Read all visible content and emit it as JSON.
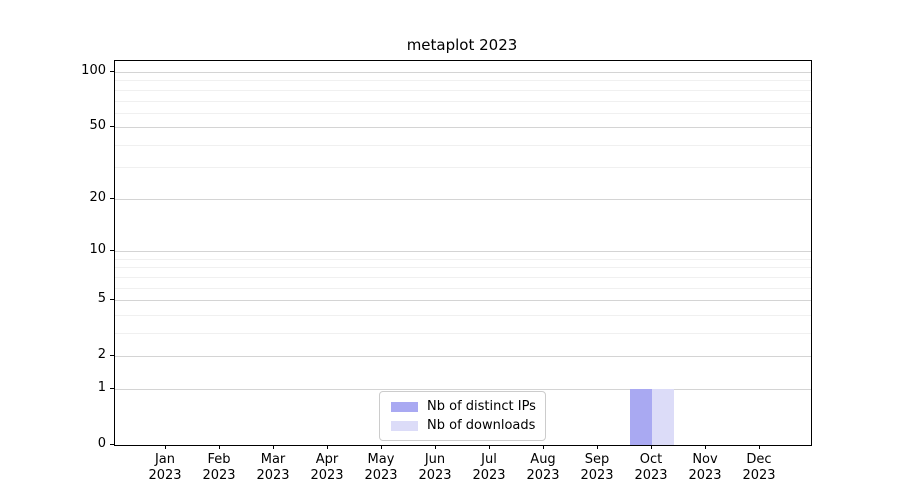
{
  "chart_data": {
    "type": "bar",
    "title": "metaplot 2023",
    "categories": [
      "Jan 2023",
      "Feb 2023",
      "Mar 2023",
      "Apr 2023",
      "May 2023",
      "Jun 2023",
      "Jul 2023",
      "Aug 2023",
      "Sep 2023",
      "Oct 2023",
      "Nov 2023",
      "Dec 2023"
    ],
    "series": [
      {
        "name": "Nb of distinct IPs",
        "color": "#a9a9f2",
        "values": [
          0,
          0,
          0,
          0,
          0,
          0,
          0,
          0,
          0,
          1,
          0,
          0
        ]
      },
      {
        "name": "Nb of downloads",
        "color": "#dcdcf8",
        "values": [
          0,
          0,
          0,
          0,
          0,
          0,
          0,
          0,
          0,
          1,
          0,
          0
        ]
      }
    ],
    "xlabel": "",
    "ylabel": "",
    "y_ticks": [
      0,
      1,
      2,
      5,
      10,
      20,
      50,
      100
    ],
    "y_minor_gridlines": [
      3,
      4,
      6,
      7,
      8,
      9,
      30,
      40,
      60,
      70,
      80,
      90
    ],
    "y_scale": "log(1+v)",
    "y_top": 114.7,
    "ylim": [
      0,
      114.7
    ],
    "grid": "on",
    "legend_position": "lower center (inside plot)",
    "colors": {
      "major_grid": "#d4d4d4",
      "minor_grid": "#f0f0f0",
      "spine": "#000000",
      "legend_border": "#cccccc",
      "background": "#ffffff"
    }
  }
}
